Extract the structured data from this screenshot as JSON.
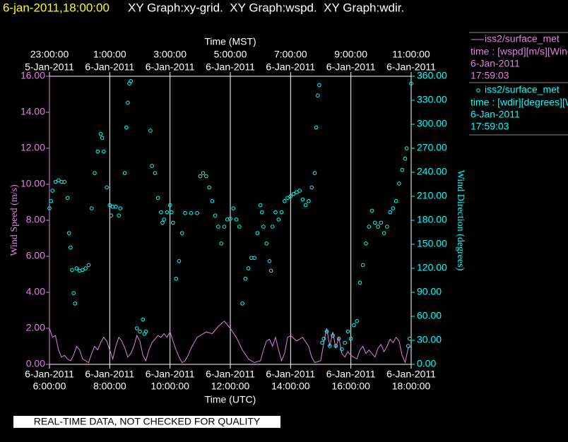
{
  "header": {
    "timestamp": "6-jan-2011,18:00:00",
    "graphs": "XY Graph:xy-grid.  XY Graph:wspd.  XY Graph:wdir."
  },
  "chart_data": {
    "type": "line-scatter",
    "xlabel": "Time (UTC)",
    "x2label": "Time (MST)",
    "ylabel": "Wind Speed (m/s)",
    "y2label": "Wind Direction (degrees)",
    "xlim": [
      6,
      18
    ],
    "xticks": [
      {
        "value": 6,
        "label": [
          "6-Jan-2011",
          "6:00:00"
        ]
      },
      {
        "value": 8,
        "label": [
          "6-Jan-2011",
          "8:00:00"
        ]
      },
      {
        "value": 10,
        "label": [
          "6-Jan-2011",
          "10:00:00"
        ]
      },
      {
        "value": 12,
        "label": [
          "6-Jan-2011",
          "12:00:00"
        ]
      },
      {
        "value": 14,
        "label": [
          "6-Jan-2011",
          "14:00:00"
        ]
      },
      {
        "value": 16,
        "label": [
          "6-Jan-2011",
          "16:00:00"
        ]
      },
      {
        "value": 18,
        "label": [
          "6-Jan-2011",
          "18:00:00"
        ]
      }
    ],
    "x2ticks": [
      {
        "value": 6,
        "label": [
          "23:00:00",
          "5-Jan-2011"
        ]
      },
      {
        "value": 8,
        "label": [
          "1:00:00",
          "6-Jan-2011"
        ]
      },
      {
        "value": 10,
        "label": [
          "3:00:00",
          "6-Jan-2011"
        ]
      },
      {
        "value": 12,
        "label": [
          "5:00:00",
          "6-Jan-2011"
        ]
      },
      {
        "value": 14,
        "label": [
          "7:00:00",
          "6-Jan-2011"
        ]
      },
      {
        "value": 16,
        "label": [
          "9:00:00",
          "6-Jan-2011"
        ]
      },
      {
        "value": 18,
        "label": [
          "11:00:00",
          "6-Jan-2011"
        ]
      }
    ],
    "ylim": [
      0,
      16
    ],
    "yticks": [
      {
        "value": 0,
        "label": "0.00"
      },
      {
        "value": 2,
        "label": "2.00"
      },
      {
        "value": 4,
        "label": "4.00"
      },
      {
        "value": 6,
        "label": "6.00"
      },
      {
        "value": 8,
        "label": "8.00"
      },
      {
        "value": 10,
        "label": "10.00"
      },
      {
        "value": 12,
        "label": "12.00"
      },
      {
        "value": 14,
        "label": "14.00"
      },
      {
        "value": 16,
        "label": "16.00"
      }
    ],
    "y2lim": [
      0,
      360
    ],
    "y2ticks": [
      {
        "value": 0,
        "label": "0.00"
      },
      {
        "value": 30,
        "label": "30.00"
      },
      {
        "value": 60,
        "label": "60.00"
      },
      {
        "value": 90,
        "label": "90.00"
      },
      {
        "value": 120,
        "label": "120.00"
      },
      {
        "value": 150,
        "label": "150.00"
      },
      {
        "value": 180,
        "label": "180.00"
      },
      {
        "value": 210,
        "label": "210.00"
      },
      {
        "value": 240,
        "label": "240.00"
      },
      {
        "value": 270,
        "label": "270.00"
      },
      {
        "value": 300,
        "label": "300.00"
      },
      {
        "value": 330,
        "label": "330.00"
      },
      {
        "value": 360,
        "label": "360.00"
      }
    ],
    "grid": true,
    "series": [
      {
        "name": "iss2/surface_met",
        "legend_lines": [
          "time : [wspd][m/s][Wind",
          "6-Jan-2011",
          "17:59:03"
        ],
        "color": "#e080e0",
        "kind": "line",
        "x": [
          6.0,
          6.1,
          6.2,
          6.3,
          6.4,
          6.5,
          6.6,
          6.7,
          6.8,
          6.9,
          7.0,
          7.1,
          7.2,
          7.3,
          7.4,
          7.5,
          7.6,
          7.7,
          7.8,
          7.9,
          8.0,
          8.1,
          8.2,
          8.3,
          8.4,
          8.5,
          8.6,
          8.7,
          8.8,
          8.9,
          9.0,
          9.1,
          9.2,
          9.3,
          9.4,
          9.5,
          9.6,
          9.7,
          9.8,
          9.9,
          10.0,
          10.1,
          10.2,
          10.3,
          10.4,
          10.5,
          10.6,
          10.7,
          10.8,
          10.9,
          11.0,
          11.2,
          11.4,
          11.6,
          11.8,
          11.9,
          12.0,
          12.2,
          12.4,
          12.6,
          12.8,
          13.0,
          13.1,
          13.2,
          13.3,
          13.4,
          13.5,
          13.6,
          13.7,
          13.8,
          13.9,
          14.0,
          14.2,
          14.4,
          14.6,
          14.7,
          14.8,
          15.0,
          15.1,
          15.2,
          15.3,
          15.4,
          15.5,
          15.6,
          15.7,
          15.8,
          15.9,
          16.0,
          16.2,
          16.3,
          16.4,
          16.5,
          16.6,
          16.8,
          16.9,
          17.0,
          17.1,
          17.2,
          17.3,
          17.4,
          17.5,
          17.6,
          17.7,
          17.8,
          17.9,
          18.0
        ],
        "values": [
          2.0,
          1.5,
          1.6,
          0.8,
          0.4,
          0.5,
          0.3,
          0.2,
          0.5,
          1.0,
          0.8,
          0.3,
          0.2,
          0.1,
          0.6,
          1.0,
          0.8,
          1.2,
          1.5,
          1.3,
          0.8,
          0.3,
          1.0,
          1.5,
          1.3,
          0.9,
          0.4,
          0.6,
          1.0,
          1.6,
          1.3,
          0.5,
          0.2,
          0.8,
          1.2,
          1.4,
          1.6,
          1.5,
          1.7,
          1.5,
          1.8,
          1.3,
          0.8,
          0.4,
          0.1,
          0.2,
          0.5,
          0.9,
          1.2,
          1.5,
          1.6,
          1.8,
          1.7,
          2.1,
          2.4,
          2.2,
          2.0,
          1.5,
          0.8,
          0.3,
          0.1,
          0.2,
          0.8,
          1.3,
          1.4,
          1.0,
          1.5,
          0.8,
          0.2,
          0.6,
          1.5,
          1.6,
          1.3,
          1.5,
          1.0,
          0.4,
          0.1,
          0.2,
          1.2,
          2.0,
          1.0,
          1.8,
          0.9,
          1.5,
          0.6,
          0.4,
          0.7,
          0.5,
          0.3,
          0.8,
          1.0,
          0.6,
          0.8,
          0.4,
          0.9,
          1.1,
          0.7,
          1.0,
          1.4,
          1.2,
          1.5,
          1.3,
          0.5,
          0.1,
          0.9,
          1.0
        ]
      },
      {
        "name": "iss2/surface_met",
        "legend_lines": [
          "time : [wdir][degrees][W",
          "6-Jan-2011",
          "17:59:03"
        ],
        "color": "#00ffff",
        "kind": "scatter",
        "axis": "y2",
        "x": [
          6.0,
          6.05,
          6.1,
          6.2,
          6.3,
          6.4,
          6.5,
          6.6,
          6.65,
          6.7,
          6.75,
          6.8,
          6.85,
          6.9,
          7.0,
          7.1,
          7.2,
          7.3,
          7.4,
          7.5,
          7.6,
          7.7,
          7.75,
          7.8,
          7.9,
          8.0,
          8.05,
          8.1,
          8.2,
          8.3,
          8.35,
          8.5,
          8.55,
          8.6,
          8.65,
          8.7,
          8.9,
          9.0,
          9.1,
          9.15,
          9.2,
          9.35,
          9.4,
          9.5,
          9.6,
          9.7,
          9.75,
          9.8,
          9.9,
          10.0,
          10.05,
          10.1,
          10.2,
          10.3,
          10.4,
          10.5,
          10.7,
          10.9,
          11.0,
          11.1,
          11.2,
          11.3,
          11.4,
          11.5,
          11.6,
          11.7,
          11.8,
          11.9,
          12.0,
          12.1,
          12.2,
          12.3,
          12.4,
          12.5,
          12.6,
          12.7,
          12.8,
          12.9,
          13.0,
          13.05,
          13.1,
          13.2,
          13.3,
          13.35,
          13.4,
          13.5,
          13.6,
          13.7,
          13.8,
          13.9,
          14.0,
          14.1,
          14.2,
          14.3,
          14.4,
          14.5,
          14.6,
          14.7,
          14.8,
          14.85,
          14.9,
          14.95,
          15.05,
          15.1,
          15.2,
          15.3,
          15.4,
          15.5,
          15.6,
          15.7,
          15.8,
          15.9,
          16.0,
          16.1,
          16.2,
          16.3,
          16.4,
          16.5,
          16.6,
          16.7,
          16.8,
          16.9,
          17.0,
          17.1,
          17.2,
          17.3,
          17.4,
          17.5,
          17.6,
          17.7,
          17.8,
          17.85,
          17.9,
          17.95,
          18.0
        ],
        "values": [
          195,
          204,
          217,
          228,
          230,
          228,
          228,
          208,
          164,
          146,
          118,
          89,
          76,
          120,
          117,
          118,
          120,
          124,
          195,
          239,
          266,
          288,
          283,
          266,
          221,
          199,
          186,
          197,
          197,
          186,
          195,
          239,
          296,
          327,
          351,
          354,
          45,
          41,
          56,
          38,
          41,
          292,
          248,
          239,
          208,
          190,
          177,
          181,
          190,
          199,
          190,
          177,
          107,
          129,
          164,
          189,
          189,
          189,
          235,
          239,
          235,
          221,
          204,
          186,
          172,
          151,
          172,
          181,
          182,
          195,
          181,
          172,
          76,
          107,
          120,
          133,
          133,
          164,
          199,
          190,
          172,
          151,
          129,
          117,
          172,
          190,
          181,
          190,
          204,
          208,
          210,
          213,
          215,
          217,
          206,
          199,
          204,
          221,
          239,
          296,
          336,
          349,
          27,
          32,
          41,
          23,
          36,
          23,
          32,
          19,
          27,
          41,
          32,
          49,
          54,
          102,
          124,
          151,
          172,
          192,
          177,
          172,
          177,
          164,
          172,
          190,
          195,
          204,
          226,
          243,
          257,
          270,
          23,
          32,
          351
        ]
      }
    ]
  },
  "footer": "REAL-TIME DATA, NOT CHECKED FOR QUALITY"
}
